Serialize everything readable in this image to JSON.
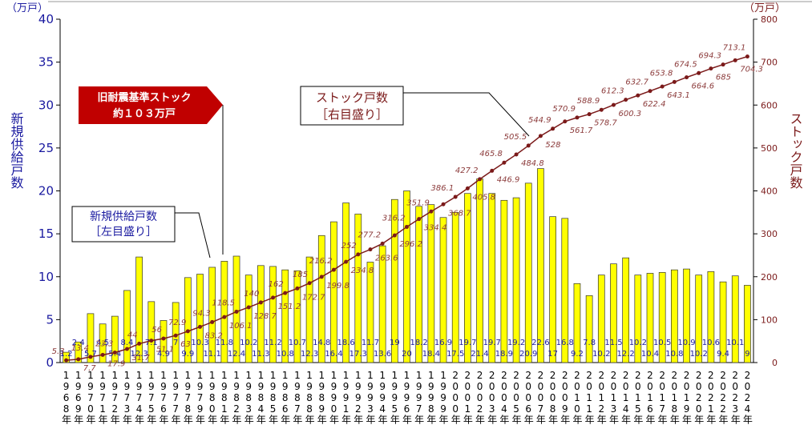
{
  "chart_data": {
    "type": "bar-line",
    "y_unit": "（万戸）",
    "y2_unit": "（万戸）",
    "ylabel": "新規供給戸数",
    "y2label": "ストック戸数",
    "categories": [
      "1968年",
      "1969年",
      "1970年",
      "1971年",
      "1972年",
      "1973年",
      "1974年",
      "1975年",
      "1976年",
      "1977年",
      "1978年",
      "1979年",
      "1980年",
      "1981年",
      "1982年",
      "1983年",
      "1984年",
      "1985年",
      "1986年",
      "1987年",
      "1988年",
      "1989年",
      "1990年",
      "1991年",
      "1992年",
      "1993年",
      "1994年",
      "1995年",
      "1996年",
      "1997年",
      "1998年",
      "1999年",
      "2000年",
      "2001年",
      "2002年",
      "2003年",
      "2004年",
      "2005年",
      "2006年",
      "2007年",
      "2008年",
      "2009年",
      "2010年",
      "2011年",
      "2012年",
      "2013年",
      "2014年",
      "2015年",
      "2016年",
      "2017年",
      "2018年",
      "2019年",
      "2020年",
      "2021年",
      "2022年",
      "2023年",
      "2024年"
    ],
    "series": [
      {
        "name": "新規供給戸数［左目盛り］",
        "color": "#ffff00",
        "values": [
          1.2,
          2.4,
          5.7,
          4.5,
          5.4,
          8.4,
          12.3,
          7.1,
          4.9,
          7.0,
          9.9,
          10.3,
          11.1,
          11.8,
          12.4,
          10.2,
          11.3,
          11.2,
          10.8,
          10.7,
          12.3,
          14.8,
          16.4,
          18.6,
          17.3,
          11.7,
          13.6,
          19.0,
          20.0,
          18.2,
          18.4,
          16.9,
          17.5,
          19.7,
          21.4,
          19.7,
          18.9,
          19.2,
          20.9,
          22.6,
          17.0,
          16.8,
          9.2,
          7.8,
          10.2,
          11.5,
          12.2,
          10.2,
          10.4,
          10.5,
          10.8,
          10.9,
          10.2,
          10.6,
          9.4,
          10.1,
          9.0
        ]
      },
      {
        "name": "ストック戸数［右目盛り］",
        "color": "#7b1a1a",
        "axis": "y2",
        "values": [
          5.3,
          7.7,
          13.4,
          17.9,
          23.3,
          31.7,
          44.0,
          51.1,
          56.0,
          63.0,
          72.9,
          83.2,
          94.3,
          106.1,
          118.5,
          128.7,
          140.0,
          151.2,
          162.0,
          172.7,
          185.0,
          199.8,
          216.2,
          234.8,
          252.0,
          263.6,
          277.2,
          296.2,
          316.2,
          334.4,
          351.9,
          368.7,
          386.1,
          405.8,
          427.2,
          446.9,
          465.8,
          484.8,
          505.5,
          528.0,
          544.9,
          561.7,
          570.9,
          578.7,
          588.9,
          600.3,
          612.3,
          622.4,
          632.7,
          643.1,
          653.8,
          664.6,
          674.5,
          685.0,
          694.3,
          704.3,
          713.1
        ]
      }
    ],
    "ylim": [
      0,
      40
    ],
    "yticks": [
      0,
      5,
      10,
      15,
      20,
      25,
      30,
      35,
      40
    ],
    "y2lim": [
      0,
      800
    ],
    "y2ticks": [
      0,
      100,
      200,
      300,
      400,
      500,
      600,
      700,
      800
    ],
    "callout": [
      "旧耐震基準ストック",
      "約１０３万戸"
    ],
    "stock_note": [
      "ストック戸数",
      "［右目盛り］"
    ],
    "supply_note": [
      "新規供給戸数",
      "［左目盛り］"
    ]
  }
}
